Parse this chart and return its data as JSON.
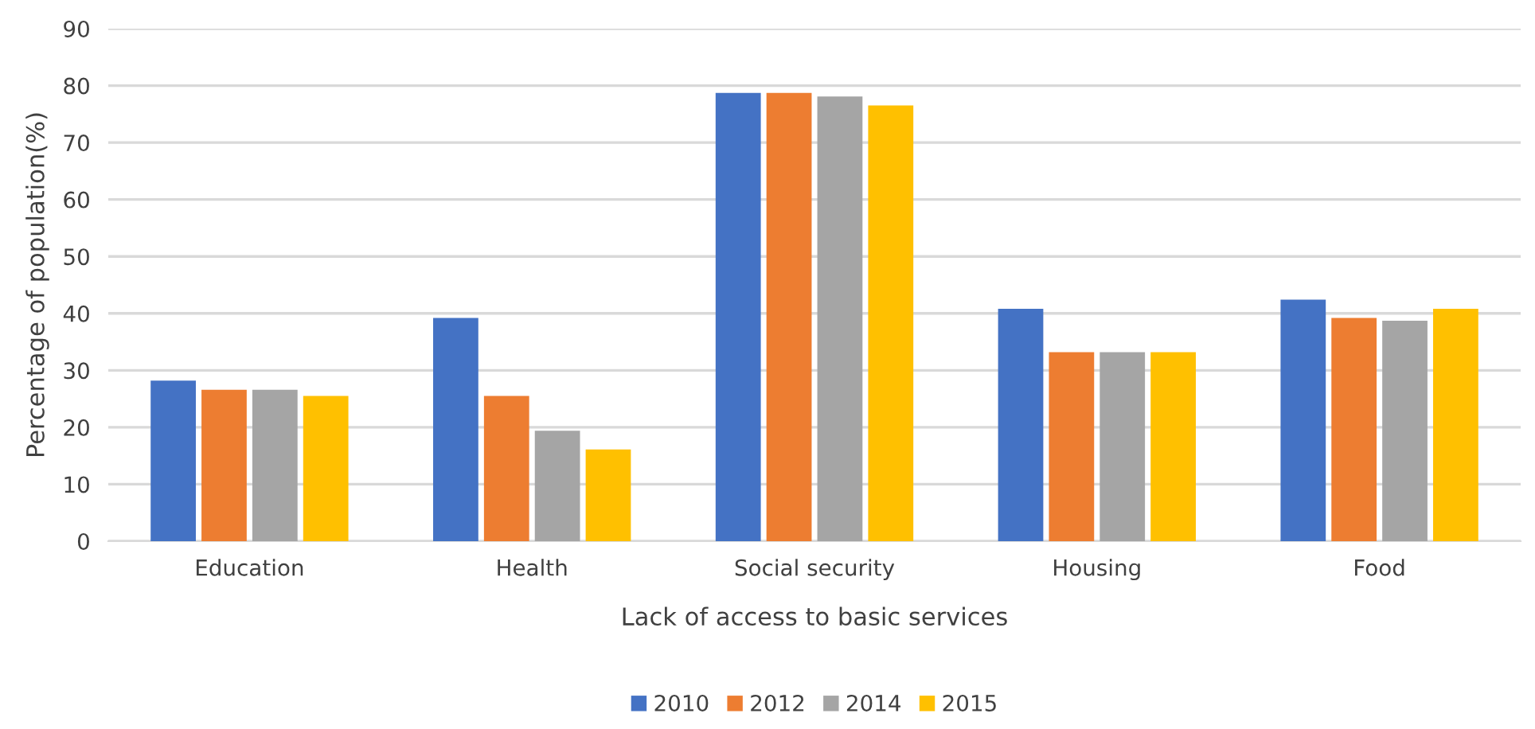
{
  "chart_data": {
    "type": "bar",
    "xlabel": "Lack of access to basic services",
    "ylabel": "Percentage of population(%)",
    "categories": [
      "Education",
      "Health",
      "Social security",
      "Housing",
      "Food"
    ],
    "series": [
      {
        "name": "2010",
        "color": "#4472c4",
        "values": [
          28.2,
          39.2,
          78.7,
          40.8,
          42.4
        ]
      },
      {
        "name": "2012",
        "color": "#ed7d31",
        "values": [
          26.6,
          25.5,
          78.7,
          33.2,
          39.2
        ]
      },
      {
        "name": "2014",
        "color": "#a5a5a5",
        "values": [
          26.6,
          19.4,
          78.1,
          33.2,
          38.7
        ]
      },
      {
        "name": "2015",
        "color": "#ffc000",
        "values": [
          25.5,
          16.1,
          76.5,
          33.2,
          40.8
        ]
      }
    ],
    "ylim": [
      0,
      90
    ],
    "yticks": [
      0,
      10,
      20,
      30,
      40,
      50,
      60,
      70,
      80,
      90
    ],
    "grid": "y",
    "legend": "bottom"
  }
}
